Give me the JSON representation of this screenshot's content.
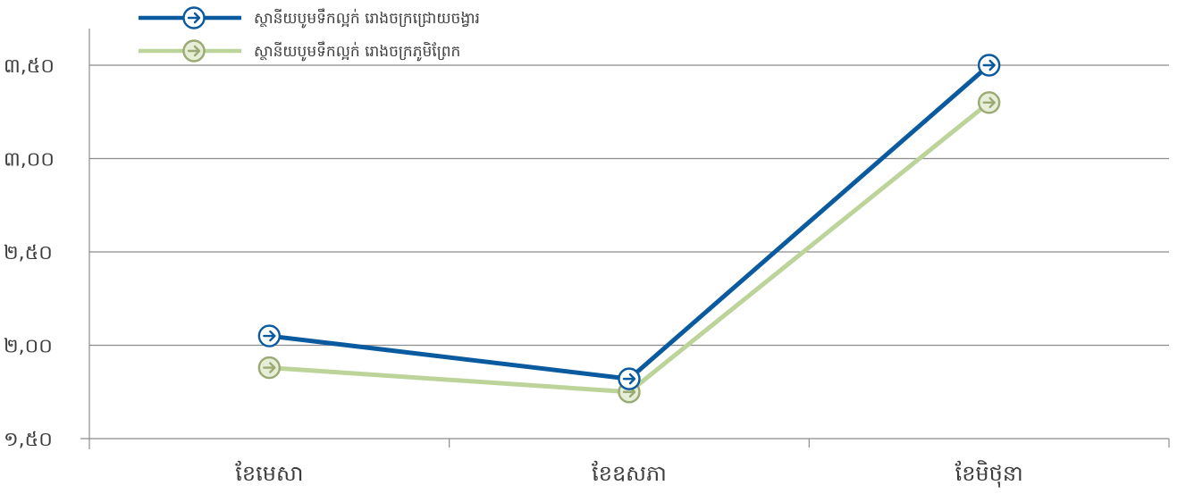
{
  "chart_data": {
    "type": "line",
    "title": "",
    "xlabel": "",
    "ylabel": "",
    "categories": [
      "ខែមេសា",
      "ខែឧសភា",
      "ខែមិថុនា"
    ],
    "series": [
      {
        "name": "ស្ថានីយបូមទឹកល្អក់ រោងចក្រជ្រោយចង្វារ",
        "values": [
          2.05,
          1.82,
          3.5
        ],
        "color": "#0a5aa0",
        "marker": "circle-arrow-icon"
      },
      {
        "name": "ស្ថានីយបូមទឹកល្អក់ រោងចក្រភូមិព្រែក",
        "values": [
          1.88,
          1.75,
          3.3
        ],
        "color": "#bcd49a",
        "marker_color": "#9aaa72",
        "marker": "circle-arrow-icon"
      }
    ],
    "ylim": [
      1.5,
      3.5
    ],
    "y_ticks": [
      {
        "value": 1.5,
        "label": "១,៥០"
      },
      {
        "value": 2.0,
        "label": "២,០០"
      },
      {
        "value": 2.5,
        "label": "២,៥០"
      },
      {
        "value": 3.0,
        "label": "៣,០០"
      },
      {
        "value": 3.5,
        "label": "៣,៥០"
      }
    ],
    "grid": true,
    "legend_position": "top-left"
  }
}
